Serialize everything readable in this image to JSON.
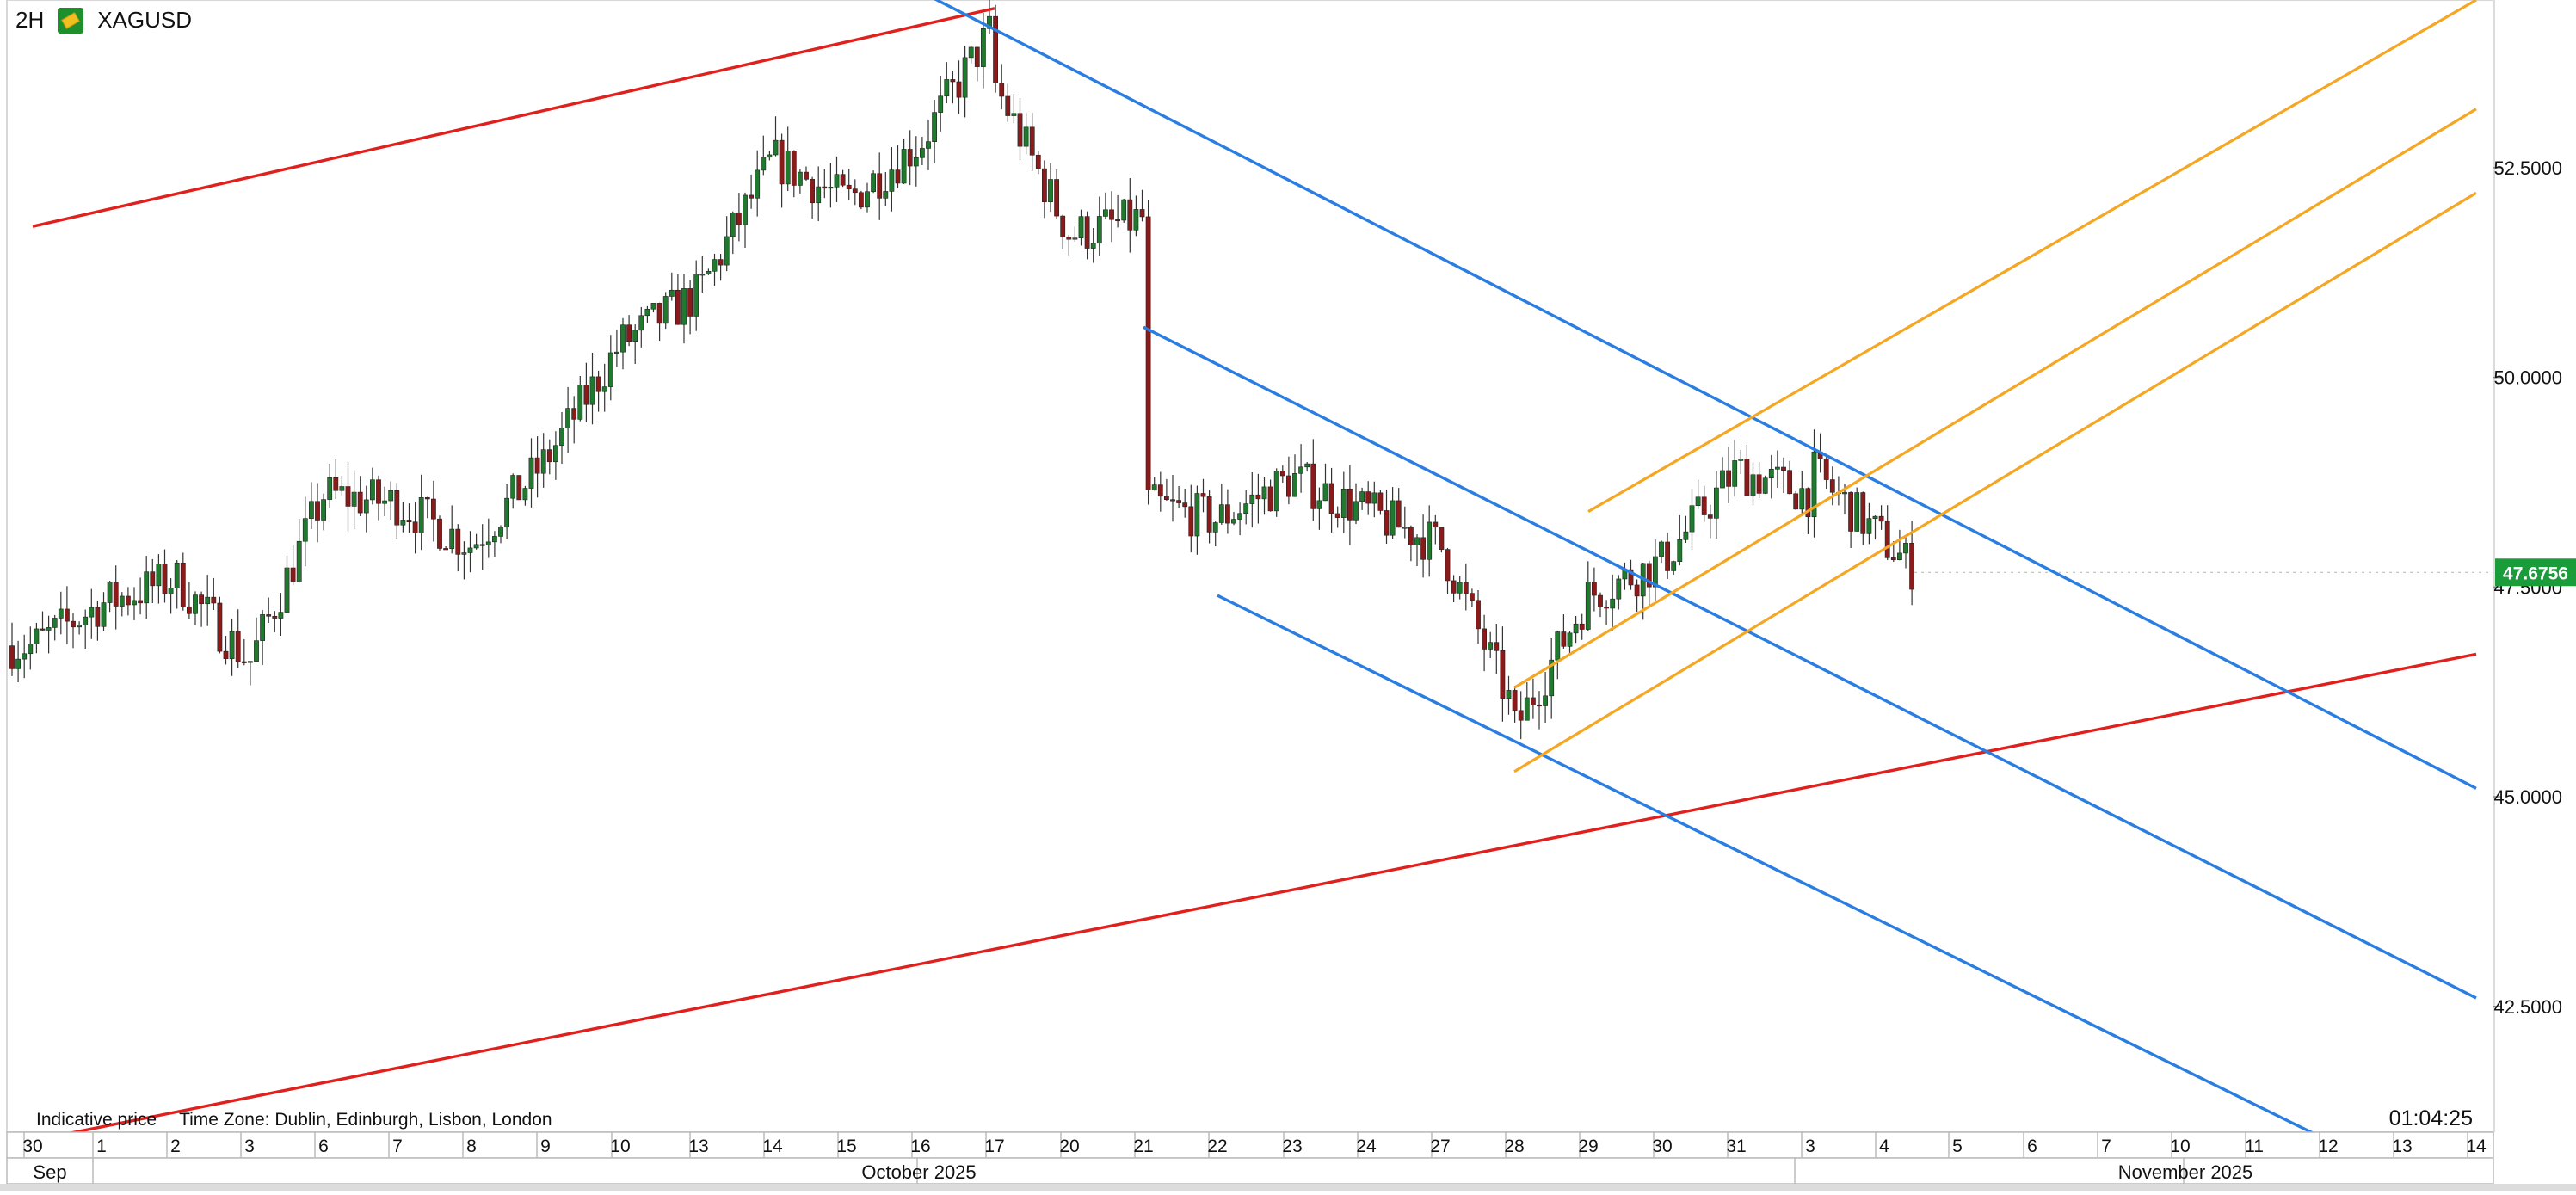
{
  "header": {
    "timeframe": "2H",
    "symbol": "XAGUSD",
    "icon": "silver-bar-icon"
  },
  "footer": {
    "indicative": "Indicative price",
    "timezone": "Time Zone: Dublin, Edinburgh, Lisbon, London",
    "clock": "01:04:25"
  },
  "price_badge": {
    "value": "47.6756",
    "color": "#1a9c3a"
  },
  "colors": {
    "bull": "#1f7a2e",
    "bear": "#8b1a1a",
    "red_line": "#e0201c",
    "blue_line": "#2a7de1",
    "orange_line": "#f5a623"
  },
  "chart_data": {
    "type": "candlestick",
    "title": "",
    "ylim": [
      41,
      54.5
    ],
    "y_ticks": [
      "52.5000",
      "50.0000",
      "47.5000",
      "45.0000",
      "42.5000"
    ],
    "x_ticks": [
      "30",
      "1",
      "2",
      "3",
      "6",
      "7",
      "8",
      "9",
      "10",
      "13",
      "14",
      "15",
      "16",
      "17",
      "20",
      "21",
      "22",
      "23",
      "24",
      "27",
      "28",
      "29",
      "30",
      "31",
      "3",
      "4",
      "5",
      "6",
      "7",
      "10",
      "11",
      "12",
      "13",
      "14"
    ],
    "month_labels": [
      "Sep",
      "October 2025",
      "November 2025"
    ],
    "last_price": 47.6756,
    "path_points": [
      [
        "30 Sep",
        46.8
      ],
      [
        "1 Oct",
        47.3
      ],
      [
        "2 Oct",
        47.6
      ],
      [
        "3 Oct",
        46.6
      ],
      [
        "6 Oct",
        48.6
      ],
      [
        "7 Oct",
        48.5
      ],
      [
        "8 Oct",
        48.0
      ],
      [
        "9 Oct",
        49.0
      ],
      [
        "10 Oct",
        50.4
      ],
      [
        "13 Oct",
        51.0
      ],
      [
        "14 Oct",
        52.6
      ],
      [
        "15 Oct",
        52.1
      ],
      [
        "16 Oct",
        52.8
      ],
      [
        "17 Oct",
        54.2
      ],
      [
        "17 Oct",
        53.5
      ],
      [
        "20 Oct",
        51.7
      ],
      [
        "21 Oct",
        51.9
      ],
      [
        "21 Oct",
        48.5
      ],
      [
        "22 Oct",
        48.3
      ],
      [
        "23 Oct",
        48.8
      ],
      [
        "24 Oct",
        48.4
      ],
      [
        "27 Oct",
        48.0
      ],
      [
        "28 Oct",
        46.0
      ],
      [
        "28 Oct",
        45.8
      ],
      [
        "29 Oct",
        47.4
      ],
      [
        "30 Oct",
        47.8
      ],
      [
        "31 Oct",
        48.9
      ],
      [
        "3 Nov",
        48.6
      ],
      [
        "3 Nov",
        48.9
      ],
      [
        "4 Nov",
        47.7
      ]
    ],
    "trendlines": [
      {
        "color": "red",
        "from": [
          "30 Sep",
          51.8
        ],
        "to": [
          "17 Oct",
          54.4
        ]
      },
      {
        "color": "red",
        "from": [
          "30 Sep",
          40.9
        ],
        "to": [
          "14 Nov",
          46.7
        ]
      },
      {
        "color": "blue",
        "from": [
          "16 Oct",
          54.6
        ],
        "to": [
          "14 Nov",
          45.1
        ]
      },
      {
        "color": "blue",
        "from": [
          "21 Oct",
          50.6
        ],
        "to": [
          "14 Nov",
          42.6
        ]
      },
      {
        "color": "blue",
        "from": [
          "22 Oct",
          47.4
        ],
        "to": [
          "12 Nov",
          40.9
        ]
      },
      {
        "color": "orange",
        "from": [
          "29 Oct",
          48.4
        ],
        "to": [
          "14 Nov",
          54.5
        ]
      },
      {
        "color": "orange",
        "from": [
          "28 Oct",
          46.3
        ],
        "to": [
          "14 Nov",
          53.2
        ]
      },
      {
        "color": "orange",
        "from": [
          "28 Oct",
          45.3
        ],
        "to": [
          "14 Nov",
          52.2
        ]
      }
    ]
  }
}
